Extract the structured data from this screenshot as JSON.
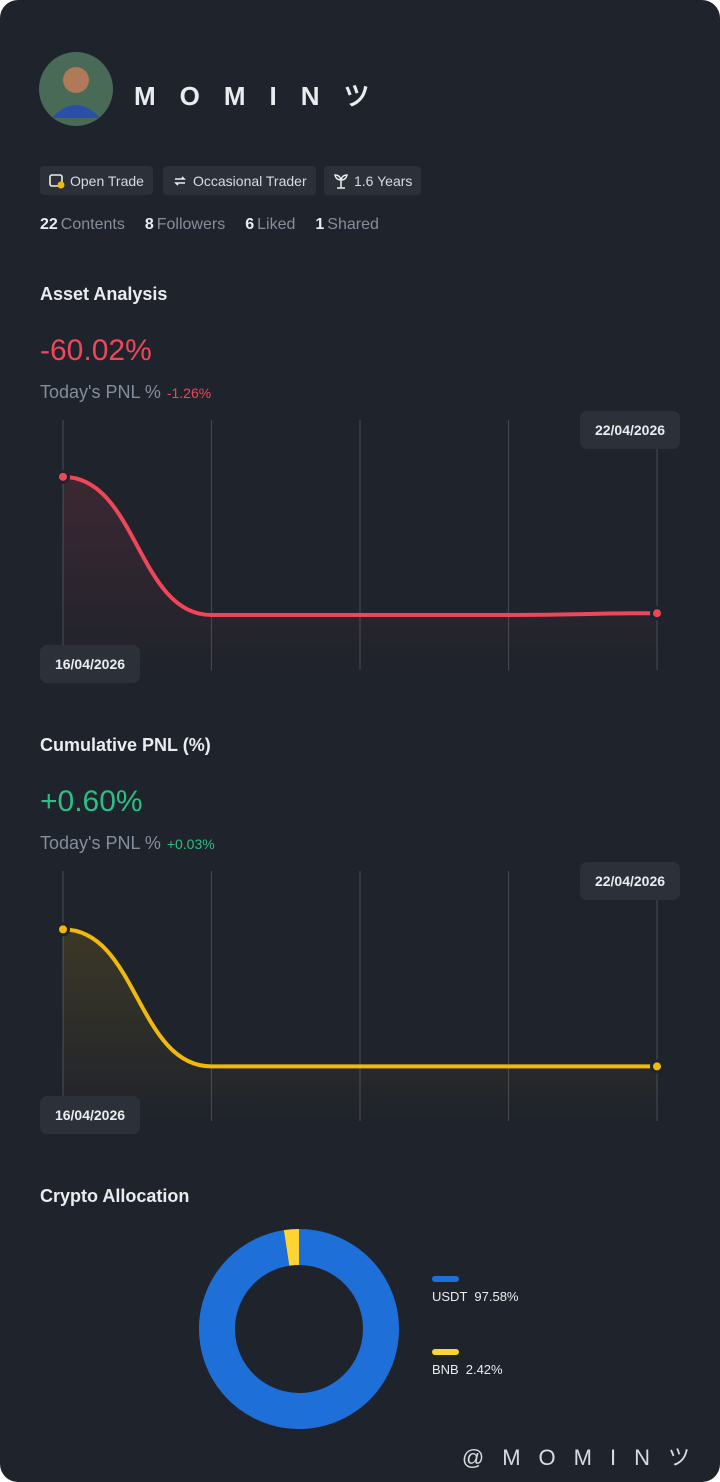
{
  "profile": {
    "name": "MOMINツ"
  },
  "tags": [
    "Open Trade",
    "Occasional Trader",
    "1.6 Years"
  ],
  "stats": [
    {
      "count": 22,
      "label": "Contents"
    },
    {
      "count": 8,
      "label": "Followers"
    },
    {
      "count": 6,
      "label": "Liked"
    },
    {
      "count": 1,
      "label": "Shared"
    }
  ],
  "chart_data": [
    {
      "type": "line",
      "title": "Asset Analysis",
      "headline": "-60.02%",
      "pnl_label": "Today's PNL %",
      "pnl_value": "-1.26%",
      "categories": [
        "16/04/2026",
        null,
        null,
        null,
        "22/04/2026"
      ],
      "series": [
        {
          "color": "#f0465a",
          "values": [
            0,
            -60.8,
            -60.8,
            -60.8,
            -60.02
          ]
        }
      ],
      "ylim": [
        -85,
        25
      ]
    },
    {
      "type": "line",
      "title": "Cumulative PNL (%)",
      "headline": "+0.60%",
      "pnl_label": "Today's PNL %",
      "pnl_value": "+0.03%",
      "categories": [
        "16/04/2026",
        null,
        null,
        null,
        "22/04/2026"
      ],
      "series": [
        {
          "color": "#f0b90b",
          "values": [
            6,
            0.6,
            0.6,
            0.6,
            0.6
          ]
        }
      ],
      "ylim": [
        -1.55,
        8.3
      ]
    },
    {
      "type": "pie",
      "title": "Crypto Allocation",
      "categories": [
        "USDT",
        "BNB"
      ],
      "values": [
        97.58,
        2.42
      ],
      "value_labels": [
        "97.58%",
        "2.42%"
      ],
      "colors": [
        "#1f6fd8",
        "#fcd535"
      ]
    }
  ],
  "footer": {
    "handle": "@MOMINツ"
  }
}
